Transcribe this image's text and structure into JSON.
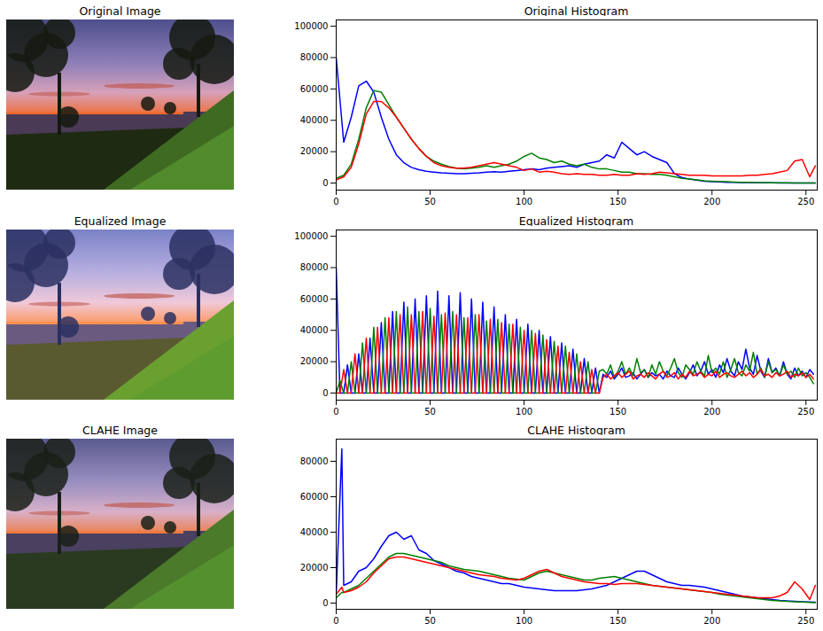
{
  "chart_data": [
    {
      "type": "image",
      "title": "Original Image"
    },
    {
      "type": "line",
      "title": "Original Histogram",
      "xlim": [
        0,
        256
      ],
      "xticks": [
        0,
        50,
        100,
        150,
        200,
        250
      ],
      "ylim": [
        -4500,
        104000
      ],
      "yticks": [
        0,
        20000,
        40000,
        60000,
        80000,
        100000
      ],
      "x": [
        0,
        4,
        8,
        12,
        16,
        20,
        24,
        28,
        32,
        36,
        40,
        44,
        48,
        52,
        56,
        60,
        64,
        68,
        72,
        76,
        80,
        84,
        88,
        92,
        96,
        100,
        104,
        108,
        112,
        116,
        120,
        124,
        128,
        132,
        136,
        140,
        144,
        148,
        152,
        156,
        160,
        164,
        168,
        172,
        176,
        180,
        184,
        188,
        192,
        196,
        200,
        204,
        208,
        212,
        216,
        220,
        224,
        228,
        232,
        236,
        240,
        244,
        248,
        252,
        255
      ],
      "series": [
        {
          "color": "blue",
          "values": [
            80000,
            26000,
            42000,
            62000,
            65000,
            58000,
            42000,
            28000,
            18000,
            13000,
            10000,
            8500,
            7500,
            7000,
            6500,
            6200,
            6000,
            6000,
            6200,
            6500,
            7000,
            7200,
            7000,
            7500,
            8000,
            8500,
            9000,
            8500,
            9500,
            10000,
            10500,
            11000,
            10000,
            12000,
            13000,
            14000,
            18000,
            16000,
            26000,
            22000,
            18000,
            20000,
            17000,
            15000,
            13000,
            6000,
            3500,
            2500,
            1800,
            1200,
            900,
            700,
            500,
            400,
            300,
            250,
            200,
            150,
            100,
            80,
            60,
            50,
            40,
            30,
            20
          ]
        },
        {
          "color": "green",
          "values": [
            3000,
            5000,
            12000,
            28000,
            48000,
            59000,
            58000,
            50000,
            42000,
            35000,
            28000,
            22000,
            17000,
            14000,
            12000,
            10500,
            9500,
            9000,
            9500,
            10000,
            11000,
            10000,
            11000,
            12000,
            14000,
            17000,
            19000,
            16000,
            15000,
            13000,
            14000,
            12000,
            11000,
            12000,
            10000,
            9000,
            9000,
            8000,
            7000,
            7000,
            6000,
            6000,
            5500,
            5500,
            5000,
            4000,
            3000,
            2500,
            2000,
            1500,
            1200,
            1000,
            800,
            600,
            500,
            400,
            300,
            250,
            200,
            150,
            100,
            80,
            60,
            50,
            40
          ]
        },
        {
          "color": "red",
          "values": [
            2000,
            4000,
            10000,
            25000,
            44000,
            52000,
            52000,
            48000,
            42000,
            35000,
            28000,
            22000,
            17000,
            13000,
            11000,
            10000,
            9500,
            9500,
            10000,
            11000,
            12000,
            13000,
            12000,
            11000,
            10000,
            8000,
            9000,
            7000,
            7500,
            7000,
            6000,
            5500,
            6000,
            5500,
            5500,
            5000,
            5000,
            5500,
            5000,
            5000,
            6000,
            5500,
            6000,
            7000,
            6500,
            6000,
            5500,
            5000,
            5000,
            5000,
            4500,
            4500,
            4500,
            4500,
            4500,
            5000,
            5000,
            5500,
            6000,
            7000,
            8000,
            14000,
            15000,
            4000,
            11000
          ]
        }
      ]
    },
    {
      "type": "image",
      "title": "Equalized Image"
    },
    {
      "type": "line",
      "title": "Equalized Histogram",
      "xlim": [
        0,
        256
      ],
      "xticks": [
        0,
        50,
        100,
        150,
        200,
        250
      ],
      "ylim": [
        -4500,
        104000
      ],
      "yticks": [
        0,
        20000,
        40000,
        60000,
        80000,
        100000
      ],
      "x": [
        0,
        2,
        4,
        6,
        8,
        10,
        12,
        14,
        16,
        18,
        20,
        22,
        24,
        26,
        28,
        30,
        32,
        34,
        36,
        38,
        40,
        42,
        44,
        46,
        48,
        50,
        52,
        54,
        56,
        58,
        60,
        62,
        64,
        66,
        68,
        70,
        72,
        74,
        76,
        78,
        80,
        82,
        84,
        86,
        88,
        90,
        92,
        94,
        96,
        98,
        100,
        102,
        104,
        106,
        108,
        110,
        112,
        114,
        116,
        118,
        120,
        122,
        124,
        126,
        128,
        130,
        132,
        134,
        136,
        138,
        140,
        142,
        144,
        146,
        148,
        150,
        152,
        154,
        156,
        158,
        160,
        162,
        164,
        166,
        168,
        170,
        172,
        174,
        176,
        178,
        180,
        182,
        184,
        186,
        188,
        190,
        192,
        194,
        196,
        198,
        200,
        202,
        204,
        206,
        208,
        210,
        212,
        214,
        216,
        218,
        220,
        222,
        224,
        226,
        228,
        230,
        232,
        234,
        236,
        238,
        240,
        242,
        244,
        246,
        248,
        250,
        252,
        254
      ],
      "series": [
        {
          "color": "blue",
          "values": [
            80000,
            0,
            0,
            18000,
            0,
            0,
            25000,
            0,
            0,
            35000,
            0,
            0,
            45000,
            0,
            0,
            52000,
            0,
            0,
            58000,
            0,
            0,
            60000,
            0,
            0,
            62000,
            0,
            0,
            65000,
            0,
            0,
            62000,
            0,
            0,
            64000,
            0,
            0,
            60000,
            0,
            0,
            58000,
            0,
            0,
            55000,
            0,
            0,
            50000,
            0,
            0,
            47000,
            0,
            0,
            44000,
            0,
            0,
            40000,
            0,
            0,
            36000,
            0,
            0,
            32000,
            0,
            0,
            28000,
            0,
            0,
            22000,
            0,
            0,
            16000,
            0,
            12000,
            10000,
            14000,
            9000,
            12000,
            16000,
            10000,
            11000,
            13000,
            9000,
            12000,
            15000,
            10000,
            13000,
            11000,
            12000,
            9000,
            14000,
            11000,
            10000,
            16000,
            12000,
            9000,
            13000,
            18000,
            11000,
            14000,
            20000,
            12000,
            15000,
            10000,
            18000,
            13000,
            22000,
            14000,
            11000,
            20000,
            15000,
            28000,
            16000,
            12000,
            24000,
            14000,
            10000,
            22000,
            13000,
            16000,
            11000,
            20000,
            12000,
            9000,
            16000,
            11000,
            14000,
            10000,
            15000,
            12000
          ]
        },
        {
          "color": "green",
          "values": [
            0,
            8000,
            0,
            0,
            20000,
            0,
            0,
            32000,
            0,
            0,
            42000,
            0,
            0,
            48000,
            0,
            0,
            52000,
            0,
            0,
            55000,
            0,
            0,
            52000,
            0,
            0,
            54000,
            0,
            0,
            50000,
            0,
            0,
            52000,
            0,
            0,
            48000,
            0,
            0,
            50000,
            0,
            0,
            46000,
            0,
            0,
            47000,
            0,
            0,
            44000,
            0,
            0,
            42000,
            0,
            0,
            40000,
            0,
            0,
            37000,
            0,
            0,
            33000,
            0,
            0,
            30000,
            0,
            0,
            25000,
            0,
            0,
            20000,
            0,
            0,
            14000,
            15000,
            12000,
            18000,
            10000,
            14000,
            20000,
            12000,
            16000,
            11000,
            22000,
            13000,
            15000,
            10000,
            18000,
            12000,
            20000,
            14000,
            11000,
            16000,
            22000,
            13000,
            10000,
            18000,
            15000,
            12000,
            20000,
            14000,
            11000,
            24000,
            13000,
            16000,
            12000,
            20000,
            10000,
            15000,
            22000,
            13000,
            11000,
            18000,
            14000,
            26000,
            12000,
            16000,
            10000,
            20000,
            13000,
            15000,
            11000,
            18000,
            12000,
            14000,
            10000,
            16000,
            11000,
            13000,
            10000,
            6000
          ]
        },
        {
          "color": "red",
          "values": [
            0,
            0,
            15000,
            0,
            0,
            25000,
            0,
            0,
            35000,
            0,
            0,
            42000,
            0,
            0,
            48000,
            0,
            0,
            50000,
            0,
            0,
            50000,
            0,
            0,
            52000,
            0,
            0,
            49000,
            0,
            0,
            51000,
            0,
            0,
            50000,
            0,
            0,
            48000,
            0,
            0,
            50000,
            0,
            0,
            47000,
            0,
            0,
            45000,
            0,
            0,
            44000,
            0,
            0,
            40000,
            0,
            0,
            38000,
            0,
            0,
            34000,
            0,
            0,
            30000,
            0,
            0,
            26000,
            0,
            0,
            20000,
            0,
            0,
            15000,
            0,
            0,
            10000,
            12000,
            9000,
            11000,
            13000,
            10000,
            12000,
            14000,
            9000,
            11000,
            12000,
            10000,
            13000,
            11000,
            9000,
            12000,
            14000,
            10000,
            11000,
            13000,
            9000,
            12000,
            10000,
            14000,
            11000,
            12000,
            13000,
            10000,
            12000,
            11000,
            14000,
            10000,
            12000,
            13000,
            11000,
            10000,
            12000,
            14000,
            11000,
            13000,
            10000,
            12000,
            15000,
            11000,
            12000,
            10000,
            13000,
            11000,
            12000,
            14000,
            10000,
            12000,
            11000,
            13000,
            10000,
            12000,
            9000
          ]
        }
      ]
    },
    {
      "type": "image",
      "title": "CLAHE Image"
    },
    {
      "type": "line",
      "title": "CLAHE Histogram",
      "xlim": [
        0,
        256
      ],
      "xticks": [
        0,
        50,
        100,
        150,
        200,
        250
      ],
      "ylim": [
        -3500,
        92500
      ],
      "yticks": [
        0,
        20000,
        40000,
        60000,
        80000
      ],
      "x": [
        0,
        3,
        4,
        8,
        12,
        16,
        20,
        24,
        28,
        32,
        36,
        40,
        44,
        48,
        52,
        56,
        60,
        64,
        68,
        72,
        76,
        80,
        84,
        88,
        92,
        96,
        100,
        104,
        108,
        112,
        116,
        120,
        124,
        128,
        132,
        136,
        140,
        144,
        148,
        152,
        156,
        160,
        164,
        168,
        172,
        176,
        180,
        184,
        188,
        192,
        196,
        200,
        204,
        208,
        212,
        216,
        220,
        224,
        228,
        232,
        236,
        240,
        244,
        248,
        252,
        255
      ],
      "series": [
        {
          "color": "blue",
          "values": [
            5000,
            87000,
            10000,
            12000,
            18000,
            20000,
            25000,
            32000,
            38000,
            40000,
            36000,
            38000,
            30000,
            28000,
            24000,
            22000,
            20000,
            18000,
            17000,
            15000,
            14000,
            13000,
            12000,
            11000,
            11000,
            10000,
            9000,
            8500,
            8000,
            7500,
            7000,
            7000,
            7000,
            7000,
            7500,
            8000,
            9000,
            10000,
            12000,
            14000,
            16000,
            18000,
            18000,
            16000,
            14000,
            12000,
            11000,
            10000,
            10000,
            9500,
            9000,
            8000,
            7000,
            6000,
            5000,
            4000,
            3500,
            3000,
            2500,
            2000,
            1500,
            1200,
            1000,
            800,
            600,
            500
          ]
        },
        {
          "color": "green",
          "values": [
            3000,
            6000,
            6000,
            8000,
            10000,
            14000,
            18000,
            22000,
            26000,
            28000,
            28000,
            27000,
            26000,
            25000,
            24000,
            23000,
            21000,
            20000,
            19000,
            18500,
            18000,
            17000,
            16000,
            15000,
            14000,
            13500,
            13000,
            15000,
            17000,
            18000,
            17000,
            16000,
            15000,
            14000,
            13000,
            13000,
            14000,
            14500,
            15000,
            14000,
            13000,
            12000,
            11000,
            10000,
            9500,
            9000,
            8500,
            8000,
            7500,
            7000,
            6500,
            6000,
            5000,
            4500,
            4000,
            3500,
            3000,
            2500,
            2000,
            1500,
            1200,
            1000,
            800,
            600,
            400,
            300
          ]
        },
        {
          "color": "red",
          "values": [
            5000,
            9000,
            6000,
            7000,
            9000,
            12000,
            17000,
            21000,
            25000,
            26000,
            26000,
            25000,
            24000,
            23000,
            22000,
            21000,
            20000,
            19000,
            18000,
            17000,
            16000,
            15500,
            15000,
            14000,
            13500,
            13000,
            14000,
            16000,
            18000,
            19000,
            17000,
            15000,
            14000,
            13000,
            12000,
            11500,
            11000,
            11000,
            10500,
            11000,
            11000,
            11000,
            10500,
            10000,
            9500,
            9000,
            8500,
            8000,
            7500,
            7000,
            6500,
            6000,
            5500,
            5000,
            4500,
            4000,
            3500,
            3000,
            3000,
            3000,
            4000,
            6000,
            12000,
            8000,
            2000,
            10000
          ]
        }
      ]
    }
  ]
}
